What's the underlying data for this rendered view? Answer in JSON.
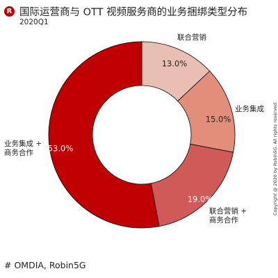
{
  "brand": {
    "icon_letter": "R",
    "icon_color": "#c00000"
  },
  "title": "国际运营商与 OTT 视频服务商的业务捆绑类型分布",
  "subtitle": "2020Q1",
  "source": "# OMDIA, Robin5G",
  "copyright": "Copyright @ 2020 by Robin5G. All rights reserved.",
  "chart_data": {
    "type": "pie",
    "donut": true,
    "start": "12 o'clock, clockwise",
    "slices": [
      {
        "label_lines": [
          "联合营销"
        ],
        "value": 13.0,
        "value_label": "13.0%",
        "color": "#e8bfb2"
      },
      {
        "label_lines": [
          "业务集成"
        ],
        "value": 15.0,
        "value_label": "15.0%",
        "color": "#e38e7a"
      },
      {
        "label_lines": [
          "联合营销 +",
          "商务合作"
        ],
        "value": 19.0,
        "value_label": "19.0%",
        "color": "#cf5a58"
      },
      {
        "label_lines": [
          "业务集成 +",
          "商务合作"
        ],
        "value": 53.0,
        "value_label": "53.0%",
        "color": "#c00000"
      }
    ]
  }
}
